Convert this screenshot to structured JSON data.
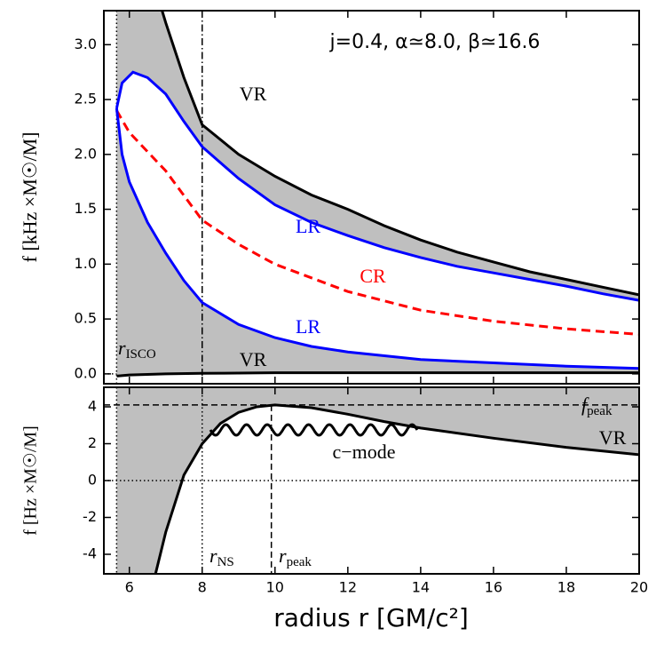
{
  "chart_data": [
    {
      "type": "line",
      "annotation": "j=0.4, α≃8.0, β≃16.6",
      "ylabel": "f [kHz ×M☉/M]",
      "xlim": [
        5.3,
        20
      ],
      "ylim": [
        -0.09,
        3.31
      ],
      "yticks": [
        {
          "value": 0,
          "label": "0.0"
        },
        0.5,
        {
          "value": 1,
          "label": "1.0"
        },
        1.5,
        {
          "value": 2,
          "label": "2.0"
        },
        2.5,
        {
          "value": 3,
          "label": "3.0"
        }
      ],
      "r_isco": {
        "symbol": "r",
        "subscript": "ISCO",
        "value": 5.65
      },
      "fill": "#bfbfbf",
      "series": [
        {
          "name": "VR",
          "color": "#000000",
          "x": [
            6.9,
            7,
            7.5,
            8,
            9,
            10,
            11,
            12,
            13,
            14,
            15,
            16,
            17,
            18,
            19,
            20
          ],
          "values": [
            3.31,
            3.2,
            2.7,
            2.27,
            2.0,
            1.8,
            1.63,
            1.5,
            1.35,
            1.22,
            1.11,
            1.02,
            0.93,
            0.86,
            0.79,
            0.72
          ]
        },
        {
          "name": "LR",
          "color": "#0000ff",
          "x": [
            5.65,
            5.8,
            6.1,
            6.5,
            7,
            7.5,
            8,
            9,
            10,
            11,
            12,
            13,
            14,
            15,
            16,
            17,
            18,
            19,
            20
          ],
          "values": [
            2.42,
            2.65,
            2.75,
            2.7,
            2.55,
            2.3,
            2.07,
            1.78,
            1.54,
            1.38,
            1.26,
            1.15,
            1.06,
            0.98,
            0.92,
            0.86,
            0.8,
            0.73,
            0.67
          ]
        },
        {
          "name": "CR",
          "color": "#ff0000",
          "dashed": true,
          "x": [
            5.65,
            6,
            7,
            8,
            9,
            10,
            12,
            14,
            16,
            18,
            20
          ],
          "values": [
            2.4,
            2.2,
            1.85,
            1.4,
            1.18,
            1.0,
            0.75,
            0.58,
            0.48,
            0.41,
            0.36
          ]
        },
        {
          "name": "LR",
          "color": "#0000ff",
          "x": [
            5.65,
            5.8,
            6,
            6.5,
            7,
            7.5,
            8,
            9,
            10,
            11,
            12,
            14,
            16,
            18,
            20
          ],
          "values": [
            2.42,
            2.0,
            1.75,
            1.38,
            1.1,
            0.85,
            0.65,
            0.45,
            0.33,
            0.25,
            0.2,
            0.13,
            0.1,
            0.07,
            0.05
          ]
        },
        {
          "name": "VR",
          "color": "#000000",
          "x": [
            5.65,
            6,
            7,
            8,
            10,
            14,
            20
          ],
          "values": [
            -0.02,
            -0.01,
            0.0,
            0.005,
            0.01,
            0.01,
            0.01
          ]
        }
      ]
    },
    {
      "type": "line",
      "xlabel": "radius r [GM/c²]",
      "ylabel": "f [Hz ×M☉/M]",
      "xlim": [
        5.3,
        20
      ],
      "ylim": [
        -5.06,
        5.06
      ],
      "xticks": [
        6,
        8,
        10,
        12,
        14,
        16,
        18,
        20
      ],
      "yticks": [
        -4,
        -2,
        0,
        2,
        4
      ],
      "fill": "#bfbfbf",
      "r_ns": {
        "symbol": "r",
        "subscript": "NS",
        "value": 8
      },
      "r_peak": {
        "symbol": "r",
        "subscript": "peak",
        "value": 9.9
      },
      "f_peak": {
        "symbol": "f",
        "subscript": "peak",
        "value": 4.1
      },
      "mode_label": "c−mode",
      "series": [
        {
          "name": "VR",
          "color": "#000000",
          "x": [
            6.72,
            7,
            7.5,
            8,
            8.5,
            9,
            9.5,
            10,
            11,
            12,
            13,
            14,
            16,
            18,
            20
          ],
          "values": [
            -5.06,
            -2.8,
            0.3,
            2.0,
            3.1,
            3.7,
            4.0,
            4.1,
            3.95,
            3.6,
            3.2,
            2.85,
            2.3,
            1.8,
            1.4
          ]
        }
      ]
    }
  ]
}
